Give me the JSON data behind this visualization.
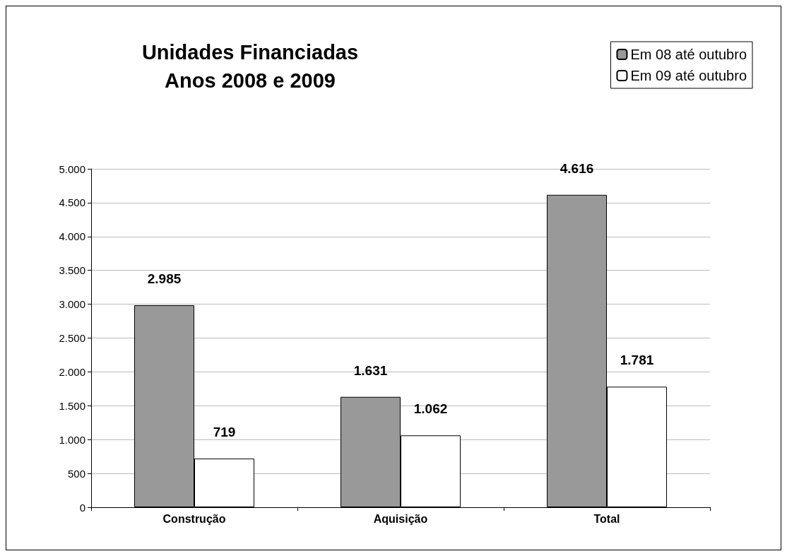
{
  "chart_data": {
    "type": "bar",
    "title": "Unidades Financiadas\nAnos 2008 e 2009",
    "categories": [
      "Construção",
      "Aquisição",
      "Total"
    ],
    "series": [
      {
        "name": "Em 08 até outubro",
        "color": "#999999",
        "values": [
          2985,
          1631,
          4616
        ],
        "value_labels": [
          "2.985",
          "1.631",
          "4.616"
        ]
      },
      {
        "name": "Em 09 até outubro",
        "color": "#ffffff",
        "values": [
          719,
          1062,
          1781
        ],
        "value_labels": [
          "719",
          "1.062",
          "1.781"
        ]
      }
    ],
    "ylim": [
      0,
      5000
    ],
    "yticks": [
      0,
      {
        "value": 500,
        "label": "500"
      },
      {
        "value": 1000,
        "label": "1.000"
      },
      {
        "value": 1500,
        "label": "1.500"
      },
      {
        "value": 2000,
        "label": "2.000"
      },
      {
        "value": 2500,
        "label": "2.500"
      },
      {
        "value": 3000,
        "label": "3.000"
      },
      {
        "value": 3500,
        "label": "3.500"
      },
      {
        "value": 4000,
        "label": "4.000"
      },
      {
        "value": 4500,
        "label": "4.500"
      },
      {
        "value": 5000,
        "label": "5.000"
      }
    ],
    "grid": "y",
    "legend": "top right"
  }
}
